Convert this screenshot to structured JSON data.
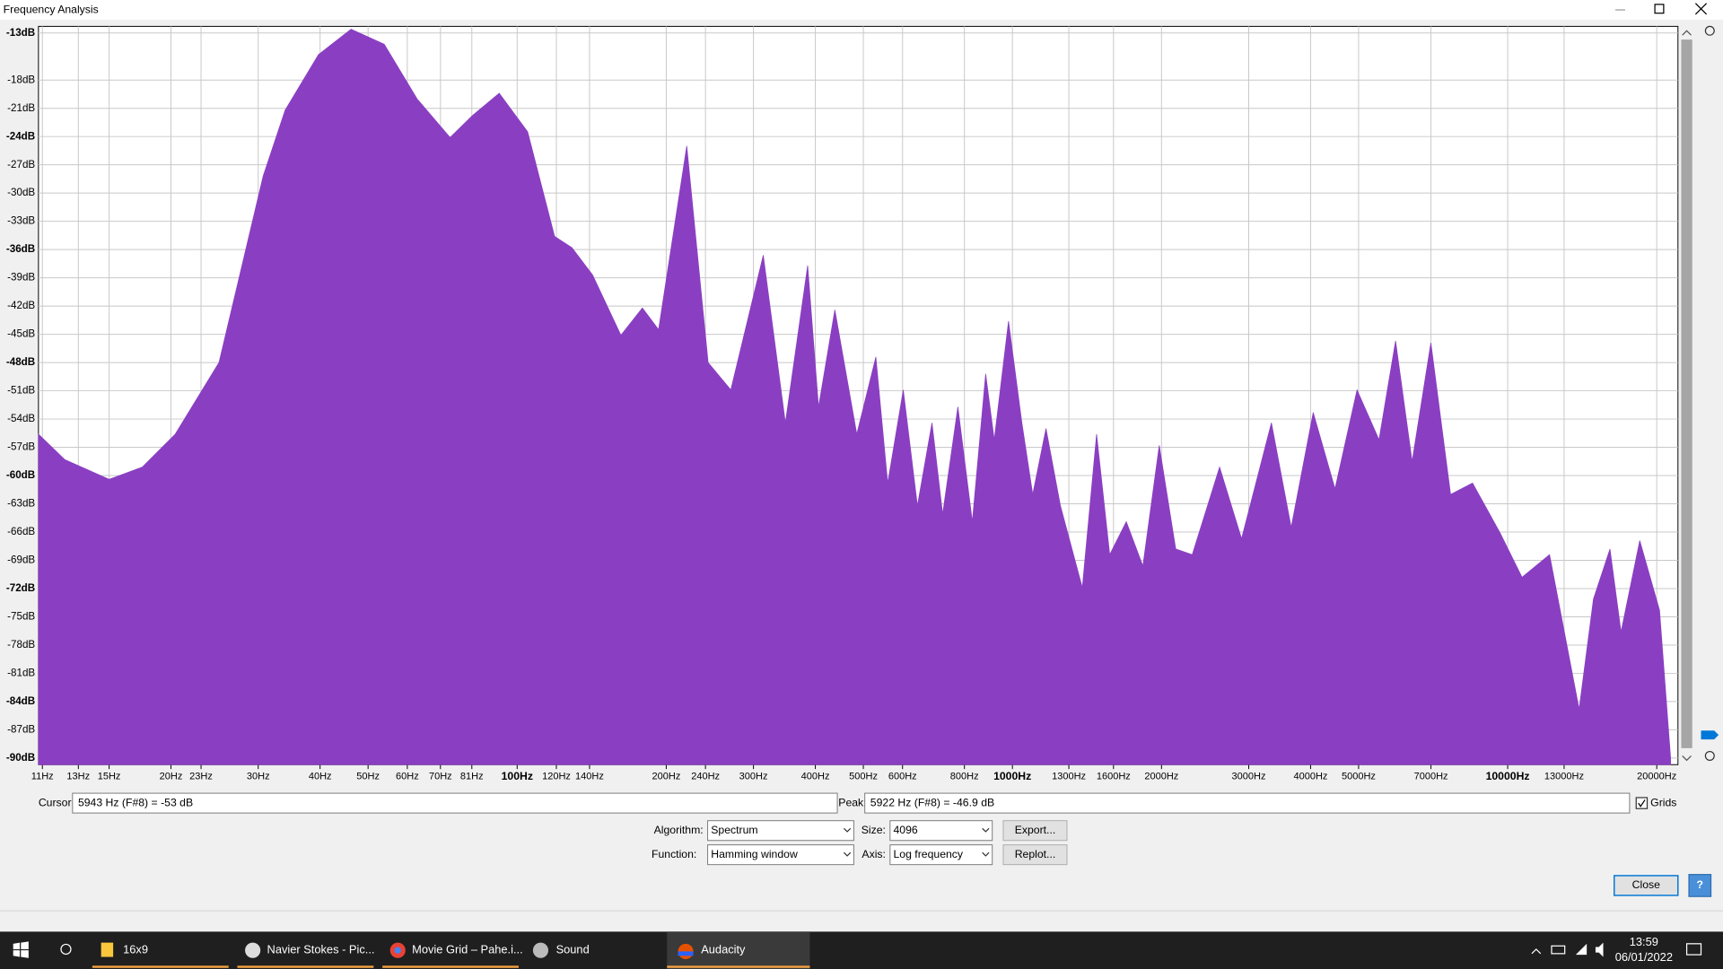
{
  "window": {
    "title": "Frequency Analysis"
  },
  "chart_data": {
    "type": "area",
    "xscale": "log",
    "grid": true,
    "color": "#8a3fc2",
    "xlim": [
      10.8,
      22070
    ],
    "ylim": [
      -90.7,
      -12.3
    ],
    "yticks": [
      {
        "value": -13,
        "label": "-13dB"
      },
      {
        "value": -18,
        "label": "-18dB"
      },
      {
        "value": -21,
        "label": "-21dB"
      },
      {
        "value": -24,
        "label": "-24dB"
      },
      {
        "value": -27,
        "label": "-27dB"
      },
      {
        "value": -30,
        "label": "-30dB"
      },
      {
        "value": -33,
        "label": "-33dB"
      },
      {
        "value": -36,
        "label": "-36dB"
      },
      {
        "value": -39,
        "label": "-39dB"
      },
      {
        "value": -42,
        "label": "-42dB"
      },
      {
        "value": -45,
        "label": "-45dB"
      },
      {
        "value": -48,
        "label": "-48dB"
      },
      {
        "value": -51,
        "label": "-51dB"
      },
      {
        "value": -54,
        "label": "-54dB"
      },
      {
        "value": -57,
        "label": "-57dB"
      },
      {
        "value": -60,
        "label": "-60dB"
      },
      {
        "value": -63,
        "label": "-63dB"
      },
      {
        "value": -66,
        "label": "-66dB"
      },
      {
        "value": -69,
        "label": "-69dB"
      },
      {
        "value": -72,
        "label": "-72dB"
      },
      {
        "value": -75,
        "label": "-75dB"
      },
      {
        "value": -78,
        "label": "-78dB"
      },
      {
        "value": -81,
        "label": "-81dB"
      },
      {
        "value": -84,
        "label": "-84dB"
      },
      {
        "value": -87,
        "label": "-87dB"
      },
      {
        "value": -90,
        "label": "-90dB"
      }
    ],
    "xticks": [
      {
        "value": 11,
        "label": "11Hz"
      },
      {
        "value": 13,
        "label": "13Hz"
      },
      {
        "value": 15,
        "label": "15Hz"
      },
      {
        "value": 20,
        "label": "20Hz"
      },
      {
        "value": 23,
        "label": "23Hz"
      },
      {
        "value": 30,
        "label": "30Hz"
      },
      {
        "value": 40,
        "label": "40Hz"
      },
      {
        "value": 50,
        "label": "50Hz"
      },
      {
        "value": 60,
        "label": "60Hz"
      },
      {
        "value": 70,
        "label": "70Hz"
      },
      {
        "value": 81,
        "label": "81Hz"
      },
      {
        "value": 100,
        "label": "100Hz"
      },
      {
        "value": 120,
        "label": "120Hz"
      },
      {
        "value": 140,
        "label": "140Hz"
      },
      {
        "value": 200,
        "label": "200Hz"
      },
      {
        "value": 240,
        "label": "240Hz"
      },
      {
        "value": 300,
        "label": "300Hz"
      },
      {
        "value": 400,
        "label": "400Hz"
      },
      {
        "value": 500,
        "label": "500Hz"
      },
      {
        "value": 600,
        "label": "600Hz"
      },
      {
        "value": 800,
        "label": "800Hz"
      },
      {
        "value": 1000,
        "label": "1000Hz"
      },
      {
        "value": 1300,
        "label": "1300Hz"
      },
      {
        "value": 1600,
        "label": "1600Hz"
      },
      {
        "value": 2000,
        "label": "2000Hz"
      },
      {
        "value": 3000,
        "label": "3000Hz"
      },
      {
        "value": 4000,
        "label": "4000Hz"
      },
      {
        "value": 5000,
        "label": "5000Hz"
      },
      {
        "value": 7000,
        "label": "7000Hz"
      },
      {
        "value": 10000,
        "label": "10000Hz"
      },
      {
        "value": 13000,
        "label": "13000Hz"
      },
      {
        "value": 20000,
        "label": "20000Hz"
      }
    ],
    "x": [
      10.8,
      12.2,
      15.0,
      17.5,
      20.4,
      25.0,
      30.7,
      34.0,
      39.7,
      46.2,
      53.9,
      62.8,
      73.2,
      81.1,
      92.0,
      105,
      119,
      129,
      142,
      162,
      179,
      193,
      220,
      243,
      270,
      314,
      348,
      386,
      406,
      438,
      485,
      530,
      560,
      602,
      643,
      688,
      723,
      776,
      830,
      883,
      919,
      982,
      1045,
      1099,
      1169,
      1250,
      1384,
      1479,
      1572,
      1698,
      1834,
      1979,
      2137,
      2307,
      2620,
      2902,
      3334,
      3655,
      4049,
      4481,
      4964,
      5498,
      5938,
      6413,
      6997,
      7669,
      8493,
      9655,
      10690,
      12150,
      13940,
      14900,
      16090,
      16940,
      18480,
      20260,
      21330
    ],
    "values": [
      -55.6,
      -58.3,
      -60.4,
      -59.1,
      -55.6,
      -48.0,
      -28.2,
      -21.2,
      -15.3,
      -12.6,
      -14.2,
      -20.0,
      -24.1,
      -21.8,
      -19.4,
      -23.5,
      -34.6,
      -35.8,
      -38.7,
      -45.1,
      -42.2,
      -44.5,
      -25.0,
      -48.0,
      -50.9,
      -36.6,
      -54.4,
      -37.7,
      -52.7,
      -42.4,
      -55.6,
      -47.4,
      -60.8,
      -50.9,
      -63.2,
      -54.4,
      -64.1,
      -52.7,
      -64.9,
      -49.2,
      -56.2,
      -43.6,
      -54.4,
      -62.0,
      -55.0,
      -63.2,
      -71.9,
      -55.6,
      -68.4,
      -64.9,
      -69.6,
      -56.8,
      -67.8,
      -68.4,
      -59.1,
      -66.7,
      -54.4,
      -65.5,
      -53.3,
      -61.4,
      -50.9,
      -56.2,
      -45.7,
      -58.5,
      -45.9,
      -62.0,
      -60.8,
      -66.1,
      -70.8,
      -68.4,
      -84.8,
      -73.1,
      -67.8,
      -76.6,
      -66.9,
      -74.3,
      -90.0
    ]
  },
  "controls": {
    "cursor_label": "Cursor:",
    "cursor_value": "5943 Hz (F#8) = -53 dB",
    "peak_label": "Peak:",
    "peak_value": "5922 Hz (F#8) = -46.9 dB",
    "grids_label": "Grids",
    "algorithm_label": "Algorithm:",
    "algorithm": "Spectrum",
    "size_label": "Size:",
    "size": "4096",
    "function_label": "Function:",
    "function": "Hamming window",
    "axis_label": "Axis:",
    "axis": "Log frequency",
    "export": "Export...",
    "replot": "Replot...",
    "close": "Close",
    "help": "?"
  },
  "taskbar": {
    "apps": [
      "16x9",
      "Navier Stokes - Pic...",
      "Movie Grid – Pahe.i...",
      "Sound",
      "Audacity"
    ],
    "time": "13:59",
    "date": "06/01/2022"
  }
}
